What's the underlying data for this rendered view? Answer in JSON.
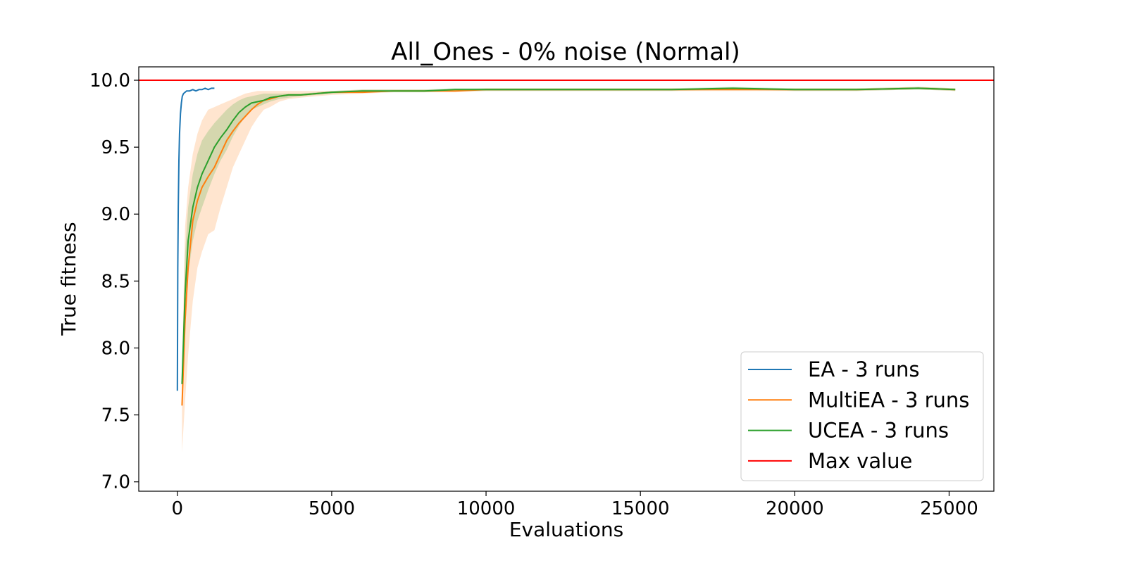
{
  "chart_data": {
    "type": "line",
    "title": "All_Ones - 0% noise (Normal)",
    "xlabel": "Evaluations",
    "ylabel": "True fitness",
    "xlim": [
      -1250,
      26450
    ],
    "ylim": [
      6.93,
      10.1
    ],
    "xticks": [
      0,
      5000,
      10000,
      15000,
      20000,
      25000
    ],
    "xtick_labels": [
      "0",
      "5000",
      "10000",
      "15000",
      "20000",
      "25000"
    ],
    "yticks": [
      7.0,
      7.5,
      8.0,
      8.5,
      9.0,
      9.5,
      10.0
    ],
    "ytick_labels": [
      "7.0",
      "7.5",
      "8.0",
      "8.5",
      "9.0",
      "9.5",
      "10.0"
    ],
    "grid": false,
    "legend_position": "lower-right",
    "series": [
      {
        "name": "EA - 3 runs",
        "color": "#1f77b4",
        "x": [
          0,
          15,
          30,
          50,
          70,
          100,
          130,
          160,
          200,
          250,
          300,
          400,
          500,
          600,
          700,
          800,
          900,
          1000,
          1100,
          1200
        ],
        "y": [
          7.68,
          8.6,
          9.05,
          9.4,
          9.6,
          9.75,
          9.83,
          9.88,
          9.9,
          9.91,
          9.92,
          9.92,
          9.93,
          9.92,
          9.93,
          9.93,
          9.94,
          9.93,
          9.94,
          9.94
        ]
      },
      {
        "name": "MultiEA - 3 runs",
        "color": "#ff7f0e",
        "x": [
          150,
          250,
          350,
          500,
          650,
          800,
          1000,
          1200,
          1400,
          1600,
          1800,
          2000,
          2200,
          2400,
          2600,
          2800,
          3000,
          3300,
          3600,
          4000,
          4500,
          5000,
          6000,
          7000,
          8000,
          9000,
          10000,
          12000,
          14000,
          16000,
          18000,
          20000,
          22000,
          24000,
          25200
        ],
        "y": [
          7.57,
          8.2,
          8.6,
          8.95,
          9.1,
          9.2,
          9.28,
          9.35,
          9.45,
          9.55,
          9.62,
          9.68,
          9.73,
          9.78,
          9.82,
          9.85,
          9.86,
          9.88,
          9.89,
          9.89,
          9.9,
          9.91,
          9.91,
          9.92,
          9.92,
          9.92,
          9.93,
          9.93,
          9.93,
          9.93,
          9.93,
          9.93,
          9.93,
          9.94,
          9.93
        ],
        "band_upper": [
          7.85,
          8.9,
          9.2,
          9.45,
          9.6,
          9.7,
          9.78,
          9.8,
          9.82,
          9.84,
          9.86,
          9.88,
          9.9,
          9.91,
          9.92,
          9.92,
          9.92,
          9.92,
          9.92,
          9.92,
          9.92,
          9.92,
          9.93,
          9.93,
          9.93,
          9.93,
          9.94,
          9.94,
          9.94,
          9.94,
          9.94,
          9.94,
          9.94,
          9.95,
          9.94
        ],
        "band_lower": [
          7.22,
          7.6,
          7.95,
          8.35,
          8.6,
          8.72,
          8.85,
          8.88,
          9.05,
          9.2,
          9.35,
          9.45,
          9.55,
          9.65,
          9.72,
          9.78,
          9.8,
          9.84,
          9.86,
          9.87,
          9.88,
          9.89,
          9.9,
          9.91,
          9.91,
          9.91,
          9.92,
          9.92,
          9.92,
          9.92,
          9.92,
          9.92,
          9.92,
          9.93,
          9.92
        ]
      },
      {
        "name": "UCEA - 3 runs",
        "color": "#2ca02c",
        "x": [
          150,
          250,
          350,
          500,
          650,
          800,
          1000,
          1200,
          1400,
          1600,
          1800,
          2000,
          2200,
          2400,
          2600,
          2800,
          3000,
          3300,
          3600,
          4000,
          4500,
          5000,
          6000,
          7000,
          8000,
          9000,
          10000,
          12000,
          14000,
          16000,
          18000,
          20000,
          22000,
          24000,
          25200
        ],
        "y": [
          7.73,
          8.4,
          8.8,
          9.05,
          9.2,
          9.3,
          9.4,
          9.5,
          9.57,
          9.63,
          9.7,
          9.76,
          9.8,
          9.83,
          9.84,
          9.85,
          9.87,
          9.88,
          9.89,
          9.89,
          9.9,
          9.91,
          9.92,
          9.92,
          9.92,
          9.93,
          9.93,
          9.93,
          9.93,
          9.93,
          9.94,
          9.93,
          9.93,
          9.94,
          9.93
        ],
        "band_upper": [
          7.8,
          8.7,
          9.05,
          9.3,
          9.45,
          9.55,
          9.62,
          9.68,
          9.73,
          9.78,
          9.82,
          9.85,
          9.87,
          9.88,
          9.89,
          9.9,
          9.9,
          9.9,
          9.9,
          9.9,
          9.91,
          9.92,
          9.93,
          9.93,
          9.93,
          9.94,
          9.94,
          9.94,
          9.94,
          9.94,
          9.95,
          9.94,
          9.94,
          9.95,
          9.94
        ],
        "band_lower": [
          7.65,
          8.1,
          8.55,
          8.8,
          8.95,
          9.05,
          9.18,
          9.3,
          9.4,
          9.48,
          9.58,
          9.66,
          9.73,
          9.78,
          9.8,
          9.82,
          9.84,
          9.86,
          9.87,
          9.88,
          9.89,
          9.9,
          9.91,
          9.91,
          9.91,
          9.92,
          9.92,
          9.92,
          9.92,
          9.92,
          9.93,
          9.92,
          9.92,
          9.93,
          9.92
        ]
      },
      {
        "name": "Max value",
        "color": "#ff0000",
        "hline": 10.0
      }
    ]
  }
}
